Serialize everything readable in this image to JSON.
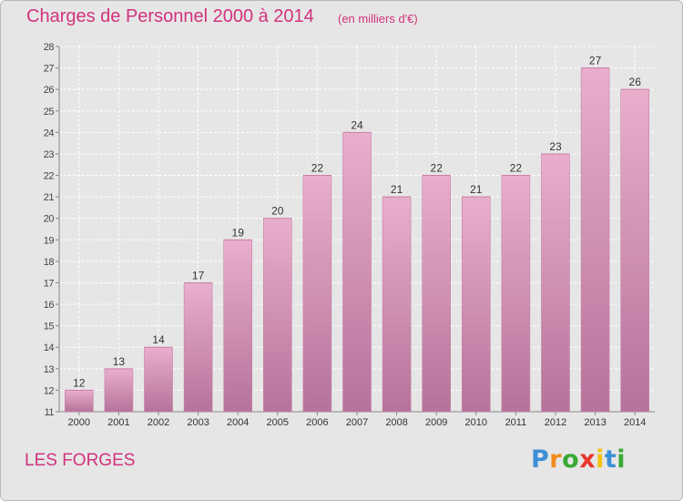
{
  "header": {
    "title": "Charges de Personnel 2000 à 2014",
    "subtitle": "(en milliers d'€)"
  },
  "footer": {
    "place": "LES FORGES",
    "logo": {
      "text": "Proxiti",
      "letter_colors": [
        "#3c8fd6",
        "#f08c1c",
        "#39a935",
        "#e8372c",
        "#f4c20d",
        "#3c8fd6",
        "#39a935"
      ]
    }
  },
  "colors": {
    "bar_top": "#e9aecd",
    "bar_bottom": "#b5739a",
    "bar_edge": "#c97fa6",
    "background": "#e6e6e6",
    "accent": "#d2327d"
  },
  "chart_data": {
    "type": "bar",
    "categories": [
      "2000",
      "2001",
      "2002",
      "2003",
      "2004",
      "2005",
      "2006",
      "2007",
      "2008",
      "2009",
      "2010",
      "2011",
      "2012",
      "2013",
      "2014"
    ],
    "values": [
      12,
      13,
      14,
      17,
      19,
      20,
      22,
      24,
      21,
      22,
      21,
      22,
      23,
      27,
      26
    ],
    "ylim": [
      11,
      28
    ],
    "yticks": [
      11,
      12,
      13,
      14,
      15,
      16,
      17,
      18,
      19,
      20,
      21,
      22,
      23,
      24,
      25,
      26,
      27,
      28
    ],
    "grid": true,
    "data_labels": true
  }
}
